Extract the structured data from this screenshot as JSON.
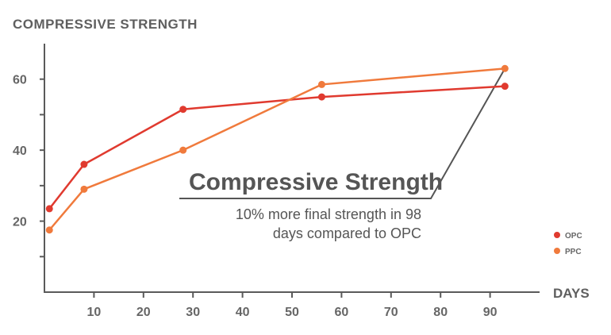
{
  "chart_data": {
    "type": "line",
    "title": "COMPRESSIVE STRENGTH",
    "xlabel": "DAYS",
    "ylabel": "",
    "xlim": [
      0,
      100
    ],
    "ylim": [
      0,
      70
    ],
    "x_ticks": [
      10,
      20,
      30,
      40,
      50,
      60,
      70,
      80,
      90
    ],
    "y_tick_labels": [
      20,
      40,
      60
    ],
    "y_minor_ticks": [
      10,
      30,
      50
    ],
    "grid": false,
    "legend_position": "right",
    "series": [
      {
        "name": "OPC",
        "color": "#e03a2f",
        "x": [
          1,
          8,
          28,
          56,
          93
        ],
        "y": [
          23.5,
          36,
          51.5,
          55,
          58
        ]
      },
      {
        "name": "PPC",
        "color": "#f07a3c",
        "x": [
          1,
          8,
          28,
          56,
          93
        ],
        "y": [
          17.5,
          29,
          40,
          58.5,
          63
        ]
      }
    ],
    "annotation": {
      "title": "Compressive Strength",
      "lines": [
        "10% more final strength in 98",
        "days compared to OPC"
      ]
    }
  }
}
